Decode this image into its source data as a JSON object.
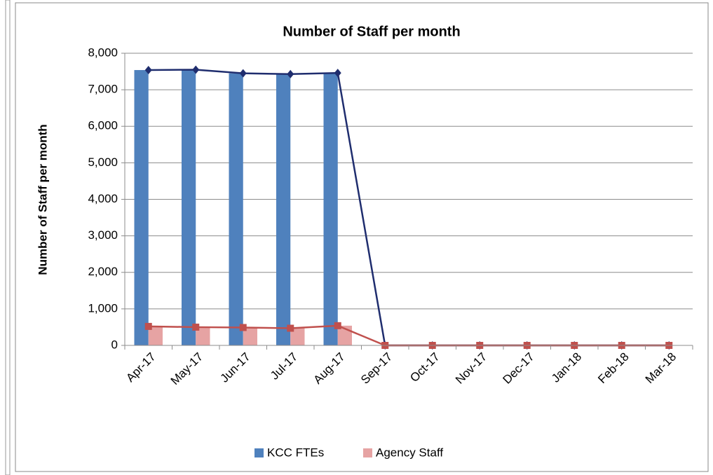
{
  "chart_data": {
    "type": "bar_line",
    "title": "Number of Staff per month",
    "y_label": "Number of Staff per month",
    "categories": [
      "Apr-17",
      "May-17",
      "Jun-17",
      "Jul-17",
      "Aug-17",
      "Sep-17",
      "Oct-17",
      "Nov-17",
      "Dec-17",
      "Jan-18",
      "Feb-18",
      "Mar-18"
    ],
    "series": [
      {
        "name": "KCC FTEs",
        "color": "#4f81bd",
        "line_color": "#1f2d6e",
        "marker": "diamond",
        "values": [
          7540,
          7550,
          7450,
          7430,
          7460,
          0,
          0,
          0,
          0,
          0,
          0,
          0
        ]
      },
      {
        "name": "Agency Staff",
        "color": "#e6a3a3",
        "line_color": "#c0504d",
        "marker": "square",
        "values": [
          520,
          500,
          490,
          470,
          540,
          0,
          0,
          0,
          0,
          0,
          0,
          0
        ]
      }
    ],
    "ylim": [
      0,
      8000
    ],
    "yticks": [
      0,
      {
        "value": 1000,
        "label": "1,000"
      },
      {
        "value": 2000,
        "label": "2,000"
      },
      {
        "value": 3000,
        "label": "3,000"
      },
      {
        "value": 4000,
        "label": "4,000"
      },
      {
        "value": 5000,
        "label": "5,000"
      },
      {
        "value": 6000,
        "label": "6,000"
      },
      {
        "value": 7000,
        "label": "7,000"
      },
      {
        "value": 8000,
        "label": "8,000"
      }
    ],
    "grid": true,
    "legend": "bottom"
  }
}
